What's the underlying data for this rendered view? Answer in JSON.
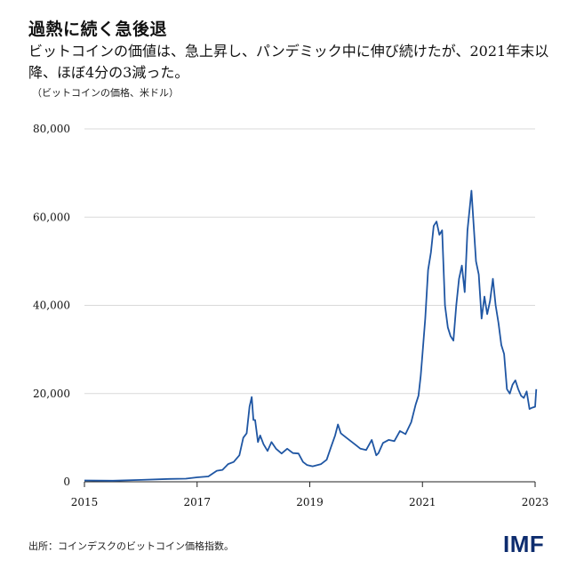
{
  "title": "過熱に続く急後退",
  "subtitle": "ビットコインの価値は、急上昇し、パンデミック中に伸び続けたが、2021年末以降、ほぼ4分の3減った。",
  "unit_note": "（ビットコインの価格、米ドル）",
  "source": "出所：コインデスクのビットコイン価格指数。",
  "logo": "IMF",
  "line_color": "#1f56a3",
  "chart_data": {
    "type": "line",
    "title": "過熱に続く急後退",
    "xlabel": "",
    "ylabel": "（ビットコインの価格、米ドル）",
    "xlim": [
      2015.0,
      2023.0
    ],
    "ylim": [
      0,
      80000
    ],
    "grid": true,
    "y_ticks": [
      0,
      20000,
      40000,
      60000,
      80000
    ],
    "y_tick_labels": [
      "0",
      "20,000",
      "40,000",
      "60,000",
      "80,000"
    ],
    "x_ticks": [
      2015,
      2017,
      2019,
      2021,
      2023
    ],
    "x_tick_labels": [
      "2015",
      "2017",
      "2019",
      "2021",
      "2023"
    ],
    "series": [
      {
        "x": [
          2015.0,
          2015.5,
          2016.0,
          2016.5,
          2016.8,
          2017.0,
          2017.2,
          2017.35,
          2017.45,
          2017.55,
          2017.65,
          2017.75,
          2017.82,
          2017.88,
          2017.93,
          2017.97,
          2018.0,
          2018.03,
          2018.08,
          2018.12,
          2018.18,
          2018.25,
          2018.32,
          2018.4,
          2018.5,
          2018.6,
          2018.7,
          2018.8,
          2018.88,
          2018.95,
          2019.05,
          2019.2,
          2019.3,
          2019.38,
          2019.45,
          2019.5,
          2019.55,
          2019.6,
          2019.7,
          2019.8,
          2019.9,
          2020.0,
          2020.1,
          2020.18,
          2020.22,
          2020.3,
          2020.4,
          2020.5,
          2020.6,
          2020.7,
          2020.8,
          2020.88,
          2020.93,
          2020.97,
          2021.0,
          2021.05,
          2021.1,
          2021.15,
          2021.2,
          2021.25,
          2021.3,
          2021.35,
          2021.4,
          2021.45,
          2021.5,
          2021.55,
          2021.6,
          2021.65,
          2021.7,
          2021.75,
          2021.8,
          2021.83,
          2021.87,
          2021.9,
          2021.95,
          2022.0,
          2022.05,
          2022.1,
          2022.15,
          2022.2,
          2022.25,
          2022.3,
          2022.35,
          2022.4,
          2022.45,
          2022.5,
          2022.55,
          2022.6,
          2022.65,
          2022.7,
          2022.75,
          2022.8,
          2022.85,
          2022.9,
          2022.95,
          2023.0,
          2023.02
        ],
        "y": [
          300,
          250,
          430,
          650,
          700,
          1000,
          1200,
          2500,
          2700,
          4000,
          4500,
          6000,
          10000,
          11000,
          17000,
          19200,
          14000,
          14000,
          9000,
          10500,
          8500,
          7000,
          9000,
          7500,
          6400,
          7500,
          6500,
          6400,
          4500,
          3800,
          3500,
          4000,
          5000,
          8000,
          10500,
          13000,
          11000,
          10500,
          9500,
          8500,
          7500,
          7200,
          9500,
          6000,
          6500,
          8800,
          9500,
          9200,
          11500,
          10800,
          13500,
          17500,
          19500,
          24000,
          29000,
          37000,
          48000,
          52000,
          58000,
          59000,
          56000,
          57000,
          40000,
          35000,
          33000,
          32000,
          40000,
          46000,
          49000,
          43000,
          57000,
          61000,
          66000,
          60000,
          50000,
          47000,
          37000,
          42000,
          38000,
          41000,
          46000,
          40000,
          36000,
          31000,
          29000,
          21000,
          20000,
          22000,
          23000,
          21000,
          19500,
          19000,
          20500,
          16500,
          16800,
          17000,
          21000
        ]
      }
    ]
  }
}
